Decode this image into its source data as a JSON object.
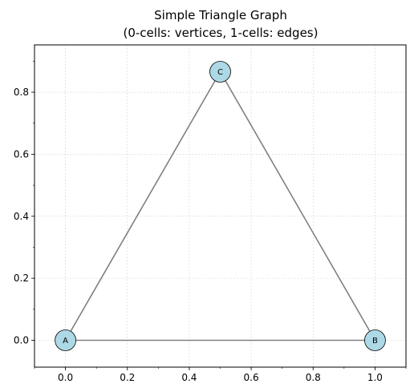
{
  "chart_data": {
    "type": "scatter",
    "title": "Simple Triangle Graph",
    "subtitle": "(0-cells: vertices, 1-cells: edges)",
    "xlabel": "",
    "ylabel": "",
    "xlim": [
      -0.1,
      1.1
    ],
    "ylim": [
      -0.0866,
      0.9526
    ],
    "grid": true,
    "x_ticks": [
      0.0,
      0.2,
      0.4,
      0.6,
      0.8,
      1.0
    ],
    "y_ticks": [
      0.0,
      0.2,
      0.4,
      0.6,
      0.8
    ],
    "x_tick_labels": [
      "0.0",
      "0.2",
      "0.4",
      "0.6",
      "0.8",
      "1.0"
    ],
    "y_tick_labels": [
      "0.0",
      "0.2",
      "0.4",
      "0.6",
      "0.8"
    ],
    "nodes": [
      {
        "label": "A",
        "x": 0.0,
        "y": 0.0
      },
      {
        "label": "B",
        "x": 1.0,
        "y": 0.0
      },
      {
        "label": "C",
        "x": 0.5,
        "y": 0.866
      }
    ],
    "edges": [
      {
        "from": "A",
        "to": "B"
      },
      {
        "from": "B",
        "to": "C"
      },
      {
        "from": "C",
        "to": "A"
      }
    ],
    "colors": {
      "node_fill": "#add8e6",
      "node_stroke": "#000000",
      "edge": "#808080",
      "grid": "#d3d3d3"
    }
  }
}
